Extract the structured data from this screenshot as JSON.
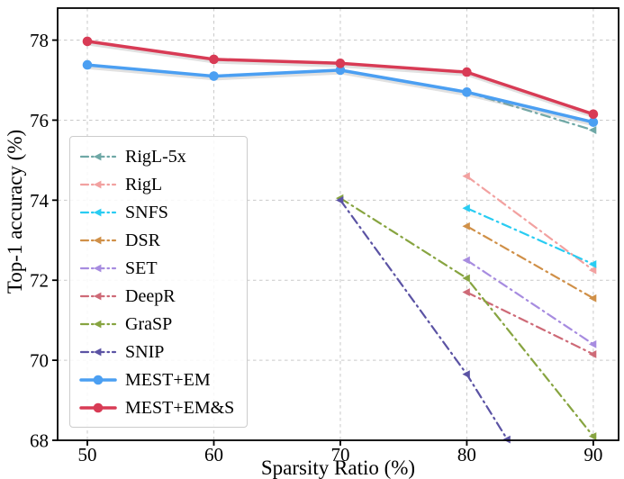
{
  "chart_data": {
    "type": "line",
    "title": "",
    "xlabel": "Sparsity Ratio (%)",
    "ylabel": "Top-1 accuracy (%)",
    "xlim": [
      47.65,
      92.0
    ],
    "ylim": [
      68.0,
      78.8
    ],
    "xticks": [
      50,
      60,
      70,
      80,
      90
    ],
    "yticks": [
      68,
      70,
      72,
      74,
      76,
      78
    ],
    "grid": true,
    "legend_position": "center-left",
    "style": {
      "background": "#ffffff",
      "grid_color": "#c9c9c9",
      "axis_color": "#000000",
      "legend_border": "#cccccc"
    },
    "series": [
      {
        "name": "RigL-5x",
        "color": "#6fa8a6",
        "style": "dashdot",
        "width": 2.2,
        "marker": "tri-left",
        "points": [
          [
            80,
            76.7
          ],
          [
            90,
            75.75
          ]
        ]
      },
      {
        "name": "RigL",
        "color": "#f2a1a0",
        "style": "dashdot",
        "width": 2.2,
        "marker": "tri-left",
        "points": [
          [
            80,
            74.6
          ],
          [
            90,
            72.25
          ]
        ]
      },
      {
        "name": "SNFS",
        "color": "#29ccf2",
        "style": "dashdot",
        "width": 2.2,
        "marker": "tri-left",
        "points": [
          [
            80,
            73.8
          ],
          [
            90,
            72.4
          ]
        ]
      },
      {
        "name": "DSR",
        "color": "#d09048",
        "style": "dashdot",
        "width": 2.2,
        "marker": "tri-left",
        "points": [
          [
            80,
            73.35
          ],
          [
            90,
            71.55
          ]
        ]
      },
      {
        "name": "SET",
        "color": "#a78ce0",
        "style": "dashdot",
        "width": 2.2,
        "marker": "tri-left",
        "points": [
          [
            80,
            72.5
          ],
          [
            90,
            70.4
          ]
        ]
      },
      {
        "name": "DeepR",
        "color": "#ce6a77",
        "style": "dashdot",
        "width": 2.2,
        "marker": "tri-left",
        "points": [
          [
            80,
            71.7
          ],
          [
            90,
            70.15
          ]
        ]
      },
      {
        "name": "GraSP",
        "color": "#87a440",
        "style": "dashdot",
        "width": 2.2,
        "marker": "tri-left",
        "points": [
          [
            70,
            74.05
          ],
          [
            80,
            72.05
          ],
          [
            90,
            68.1
          ]
        ]
      },
      {
        "name": "SNIP",
        "color": "#5b53a4",
        "style": "dashdot",
        "width": 2.2,
        "marker": "tri-left",
        "points": [
          [
            70,
            74.0
          ],
          [
            80,
            69.65
          ],
          [
            83.2,
            68.02
          ]
        ]
      },
      {
        "name": "MEST+EM",
        "color": "#4b9ff2",
        "style": "solid",
        "width": 3.5,
        "marker": "circle",
        "points": [
          [
            50,
            77.38
          ],
          [
            60,
            77.1
          ],
          [
            70,
            77.25
          ],
          [
            80,
            76.7
          ],
          [
            90,
            75.95
          ]
        ]
      },
      {
        "name": "MEST+EM&S",
        "color": "#d83b55",
        "style": "solid",
        "width": 3.5,
        "marker": "circle",
        "points": [
          [
            50,
            77.97
          ],
          [
            60,
            77.52
          ],
          [
            70,
            77.42
          ],
          [
            80,
            77.2
          ],
          [
            90,
            76.15
          ]
        ]
      }
    ]
  }
}
